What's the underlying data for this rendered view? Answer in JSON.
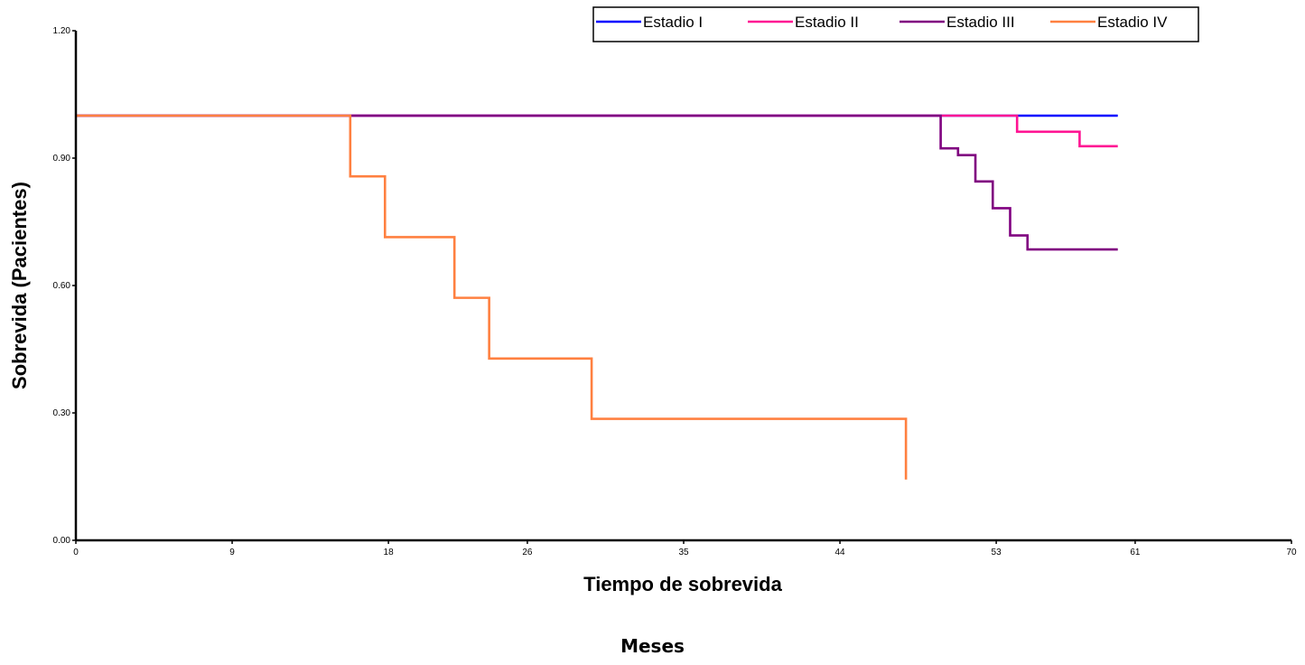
{
  "chart_data": {
    "type": "line",
    "step": true,
    "xlabel": "Tiempo de sobrevida",
    "ylabel": "Sobrevida (Pacientes)",
    "x_ticks": [
      "0",
      "9",
      "18",
      "26",
      "35",
      "44",
      "53",
      "61",
      "70"
    ],
    "x_tick_values": [
      0,
      9,
      18,
      26,
      35,
      44,
      53,
      61,
      70
    ],
    "y_ticks": [
      "0.00",
      "0.30",
      "0.60",
      "0.90",
      "1.20"
    ],
    "y_tick_values": [
      0,
      0.3,
      0.6,
      0.9,
      1.2
    ],
    "xlim": [
      0,
      70
    ],
    "ylim": [
      0,
      1.2
    ],
    "grid": false,
    "legend_position": "top-right",
    "series": [
      {
        "name": "Estadio I",
        "color": "#0000ff",
        "x": [
          0,
          60
        ],
        "y": [
          1.0,
          1.0
        ]
      },
      {
        "name": "Estadio II",
        "color": "#ff1493",
        "x": [
          0,
          54.2,
          57.8,
          60
        ],
        "y": [
          1.0,
          0.962,
          0.928,
          0.928
        ]
      },
      {
        "name": "Estadio III",
        "color": "#800080",
        "x": [
          0,
          49.8,
          50.8,
          51.8,
          52.8,
          53.8,
          54.8,
          60
        ],
        "y": [
          1.0,
          0.923,
          0.907,
          0.845,
          0.782,
          0.718,
          0.685,
          0.685
        ]
      },
      {
        "name": "Estadio IV",
        "color": "#ff8040",
        "x": [
          0,
          15.8,
          17.8,
          21.8,
          23.8,
          29.7,
          47.8
        ],
        "y": [
          1.0,
          0.857,
          0.714,
          0.571,
          0.428,
          0.286,
          0.143
        ]
      }
    ]
  },
  "footer_label": "Meses"
}
